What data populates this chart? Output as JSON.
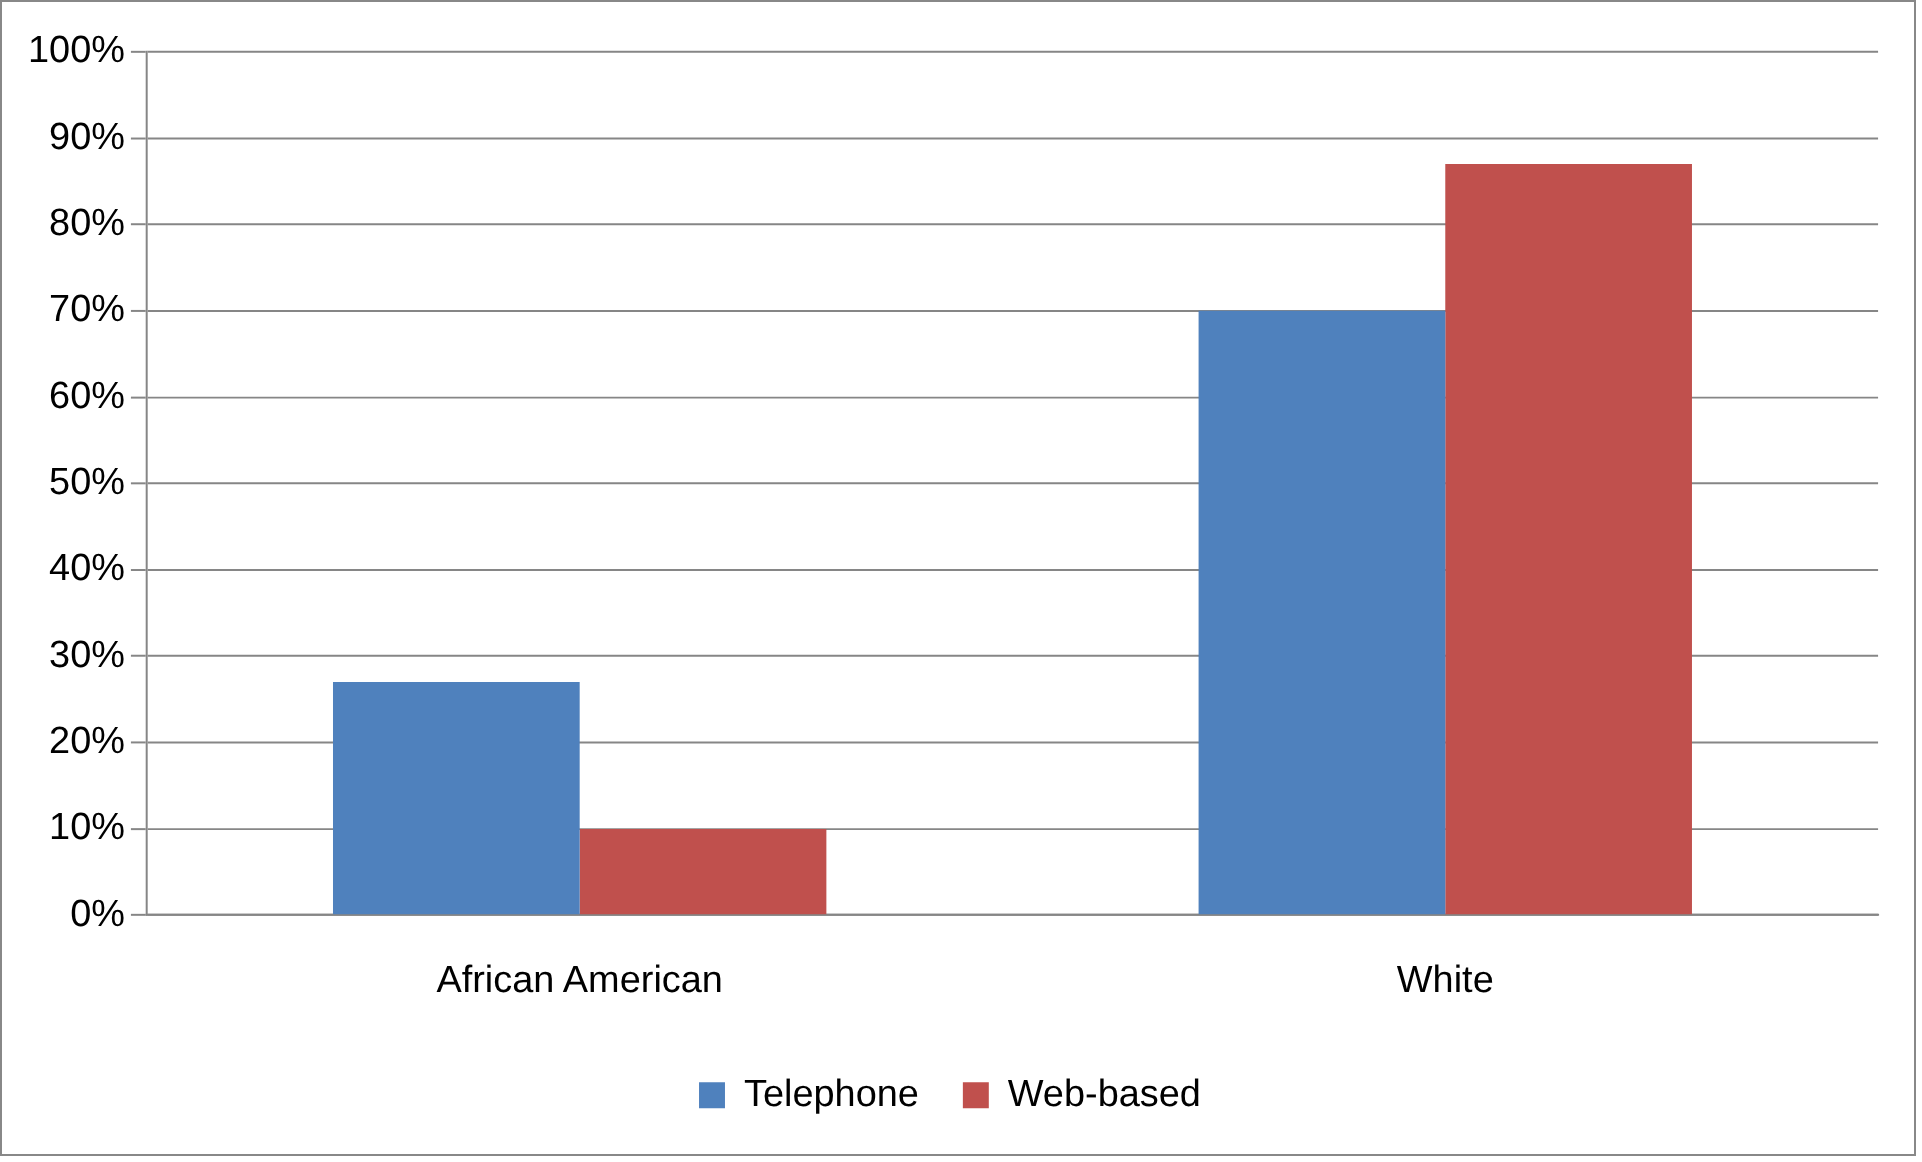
{
  "chart_data": {
    "type": "bar",
    "categories": [
      "African American",
      "White"
    ],
    "series": [
      {
        "name": "Telephone",
        "color": "#4f81bd",
        "values": [
          27,
          70
        ]
      },
      {
        "name": "Web-based",
        "color": "#c0504d",
        "values": [
          10,
          87
        ]
      }
    ],
    "ylim": [
      0,
      100
    ],
    "yticks": [
      {
        "value": 0,
        "label": "0%"
      },
      {
        "value": 10,
        "label": "10%"
      },
      {
        "value": 20,
        "label": "20%"
      },
      {
        "value": 30,
        "label": "30%"
      },
      {
        "value": 40,
        "label": "40%"
      },
      {
        "value": 50,
        "label": "50%"
      },
      {
        "value": 60,
        "label": "60%"
      },
      {
        "value": 70,
        "label": "70%"
      },
      {
        "value": 80,
        "label": "80%"
      },
      {
        "value": 90,
        "label": "90%"
      },
      {
        "value": 100,
        "label": "100%"
      }
    ],
    "grid": "y",
    "legend": "bottom"
  }
}
